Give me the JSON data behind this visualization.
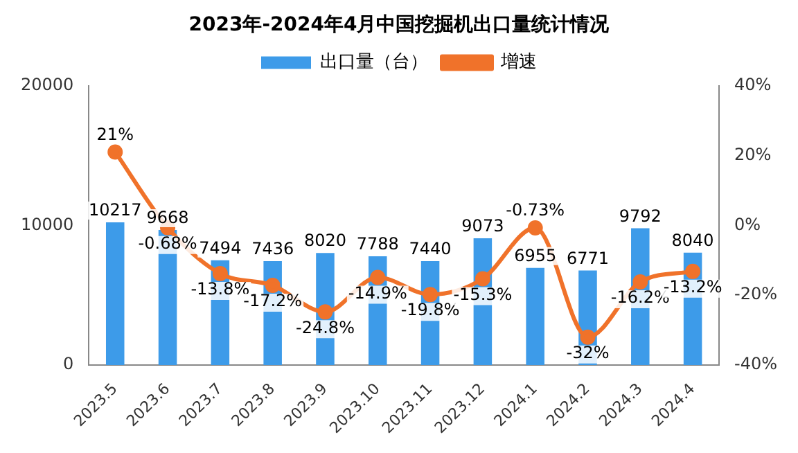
{
  "chart_data": {
    "type": "bar",
    "title": "2023年-2024年4月中国挖掘机出口量统计情况",
    "categories": [
      "2023.5",
      "2023.6",
      "2023.7",
      "2023.8",
      "2023.9",
      "2023.10",
      "2023.11",
      "2023.12",
      "2024.1",
      "2024.2",
      "2024.3",
      "2024.4"
    ],
    "series": [
      {
        "name": "出口量（台）",
        "color": "#3d9be9",
        "values": [
          10217,
          9668,
          7494,
          7436,
          8020,
          7788,
          7440,
          9073,
          6955,
          6771,
          9792,
          8040
        ]
      },
      {
        "name": "增速",
        "type": "line",
        "axis": "y2",
        "color": "#f0722a",
        "values": [
          21,
          -0.68,
          -13.8,
          -17.2,
          -24.8,
          -14.9,
          -19.8,
          -15.3,
          -0.73,
          -32,
          -16.2,
          -13.2
        ],
        "value_labels": [
          "21%",
          "-0.68%",
          "-13.8%",
          "-17.2%",
          "-24.8%",
          "-14.9%",
          "-19.8%",
          "-15.3%",
          "-0.73%",
          "-32%",
          "-16.2%",
          "-13.2%"
        ]
      }
    ],
    "ylim": [
      0,
      20000
    ],
    "yticks": [
      0,
      10000,
      20000
    ],
    "y2lim": [
      -40,
      40
    ],
    "y2ticks": [
      {
        "value": -40,
        "label": "-40%"
      },
      {
        "value": -20,
        "label": "-20%"
      },
      {
        "value": 0,
        "label": "0%"
      },
      {
        "value": 20,
        "label": "20%"
      },
      {
        "value": 40,
        "label": "40%"
      }
    ],
    "data_labels": true,
    "legend": "top",
    "marker": "circle",
    "grid": false
  }
}
